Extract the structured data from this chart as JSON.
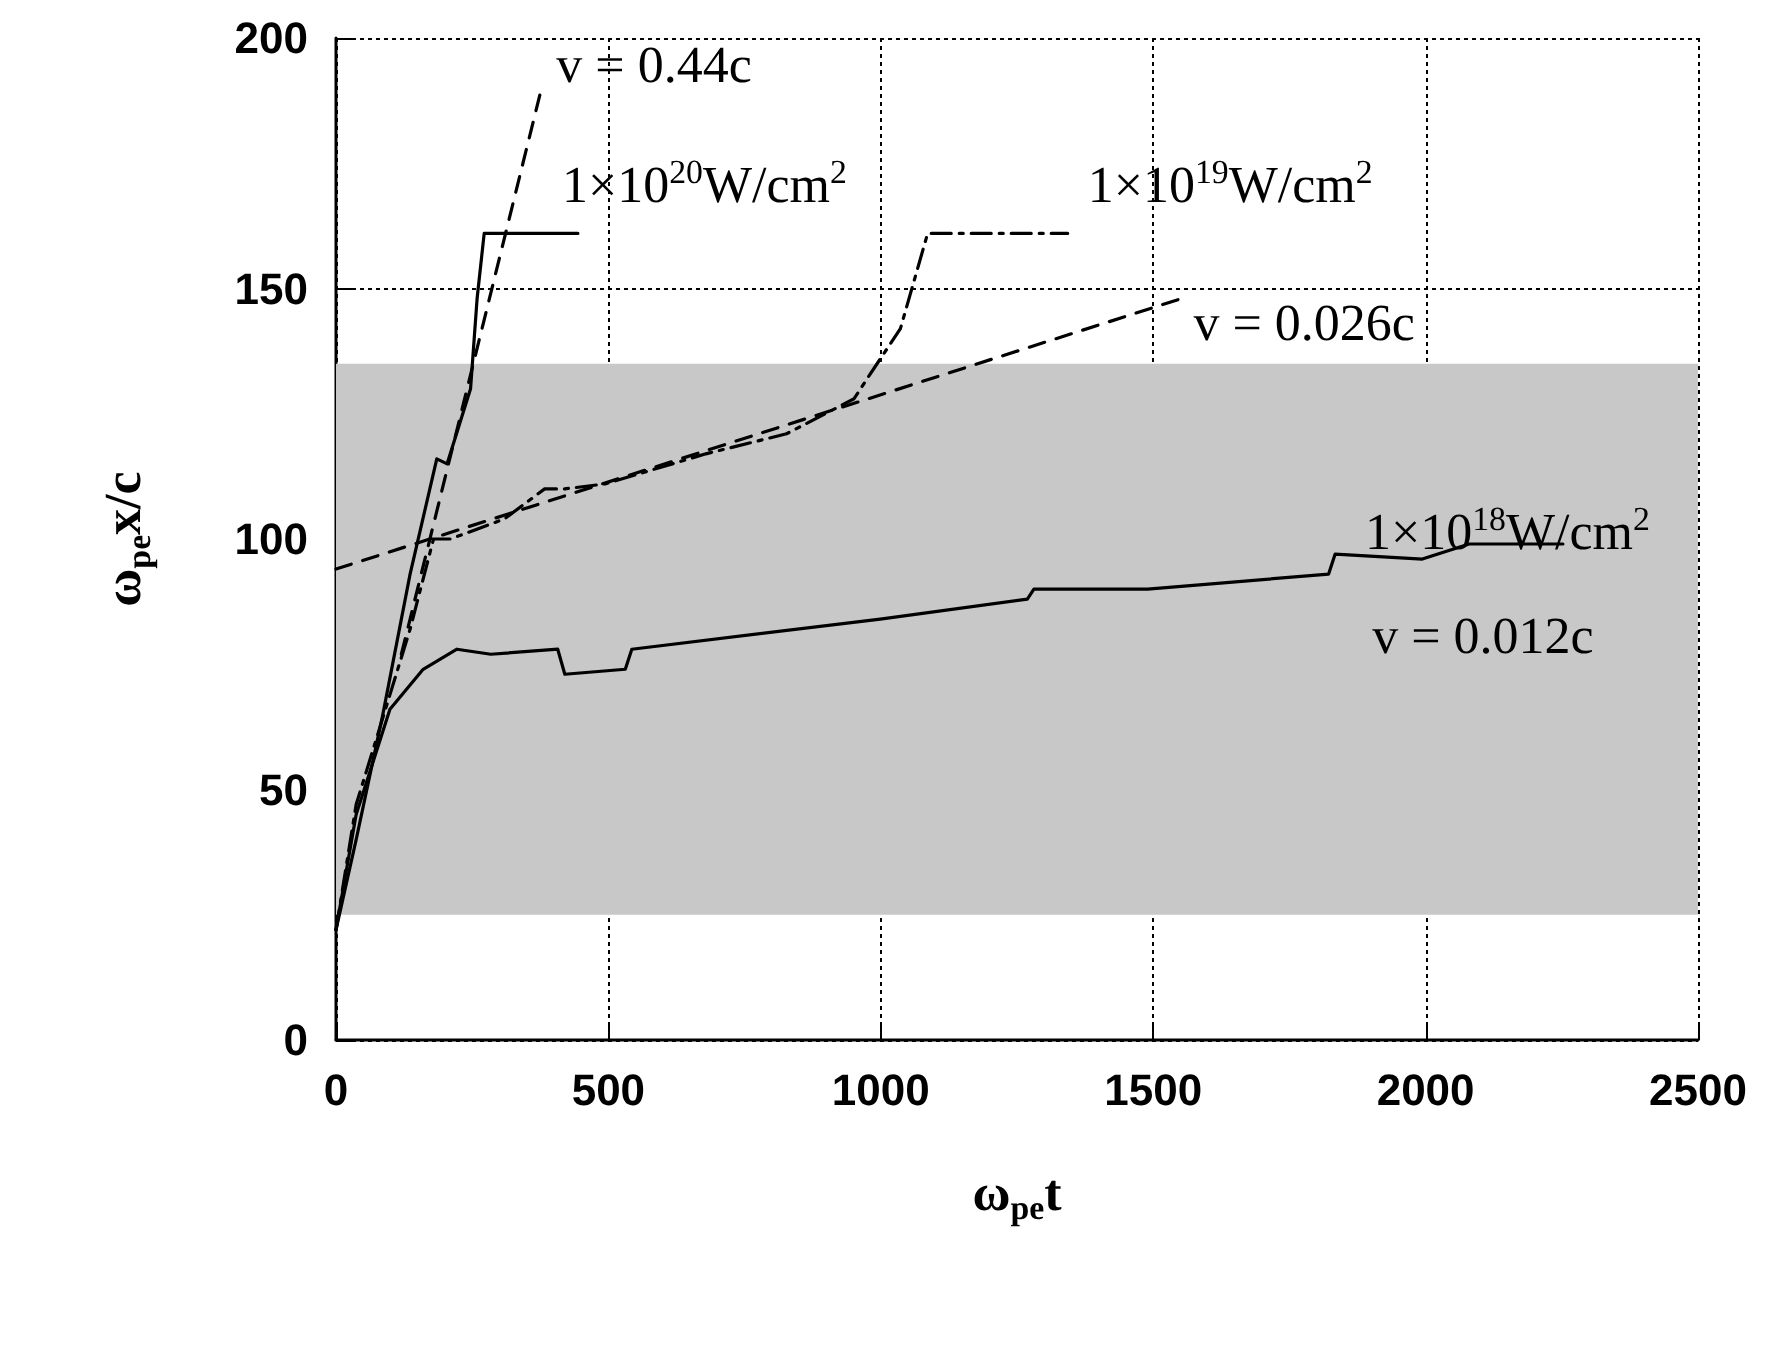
{
  "chart_data": {
    "type": "line",
    "xlabel": "ω$_{pe}$t",
    "ylabel": "ω$_{pe}$x/c",
    "xlim": [
      0,
      2500
    ],
    "xticks": [
      0,
      500,
      1000,
      1500,
      2000,
      2500
    ],
    "ylim": [
      0,
      200
    ],
    "yticks": [
      0,
      50,
      100,
      150,
      200
    ],
    "grid": true,
    "bands": [
      {
        "axis": "y",
        "from": 25,
        "to": 135,
        "color": "#c8c8c8"
      }
    ],
    "series": [
      {
        "name": "1×10$^{20}$W/cm$^{2}$",
        "color": "#000000",
        "line_style": "solid",
        "x": [
          0,
          37,
          86,
          136,
          185,
          204,
          247,
          259,
          272,
          444
        ],
        "values": [
          22,
          40,
          65,
          93,
          116,
          115,
          130,
          148,
          161,
          161
        ]
      },
      {
        "name": "1×10$^{19}$W/cm$^{2}$",
        "color": "#000000",
        "line_style": "dotted",
        "x": [
          0,
          37,
          136,
          179,
          210,
          309,
          383,
          420,
          494,
          679,
          827,
          951,
          975,
          1036,
          1086,
          1343
        ],
        "values": [
          22,
          47,
          82,
          100,
          100,
          104,
          110,
          110,
          111,
          117,
          121,
          128,
          132,
          142,
          161,
          161
        ]
      },
      {
        "name": "1×10$^{18}$W/cm$^{2}$",
        "color": "#000000",
        "line_style": "solid",
        "x": [
          0,
          37,
          99,
          160,
          222,
          284,
          407,
          420,
          531,
          543,
          999,
          1269,
          1281,
          1490,
          1822,
          1834,
          1994,
          2080,
          2252
        ],
        "values": [
          22,
          45,
          66,
          74,
          78,
          77,
          78,
          73,
          74,
          78,
          84,
          88,
          90,
          90,
          93,
          97,
          96,
          99,
          99
        ]
      },
      {
        "name": "v = 0.44c",
        "color": "#000000",
        "line_style": "dashed",
        "x": [
          120,
          375
        ],
        "values": [
          77,
          189
        ]
      },
      {
        "name": "v = 0.026c",
        "color": "#000000",
        "line_style": "dashed",
        "x": [
          0,
          1552
        ],
        "values": [
          94,
          148
        ]
      }
    ],
    "annotations": [
      "v = 0.012c"
    ]
  }
}
